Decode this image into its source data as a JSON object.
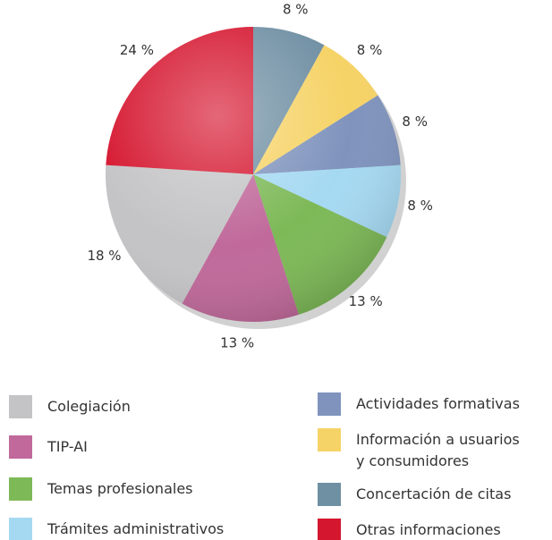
{
  "chart_data": {
    "type": "pie",
    "categories": [
      "Concertación de citas",
      "Información a usuarios y consumidores",
      "Actividades formativas",
      "Trámites administrativos",
      "Temas profesionales",
      "TIP-AI",
      "Colegiación",
      "Otras informaciones"
    ],
    "values": [
      8,
      8,
      8,
      8,
      13,
      13,
      18,
      24
    ],
    "value_labels": [
      "8 %",
      "8 %",
      "8 %",
      "8 %",
      "13 %",
      "13 %",
      "18 %",
      "24 %"
    ],
    "colors": [
      "#6f8fa3",
      "#f6d366",
      "#7f93bd",
      "#a5d9f2",
      "#7db957",
      "#c0699a",
      "#c4c4c6",
      "#d5162f"
    ]
  }
}
